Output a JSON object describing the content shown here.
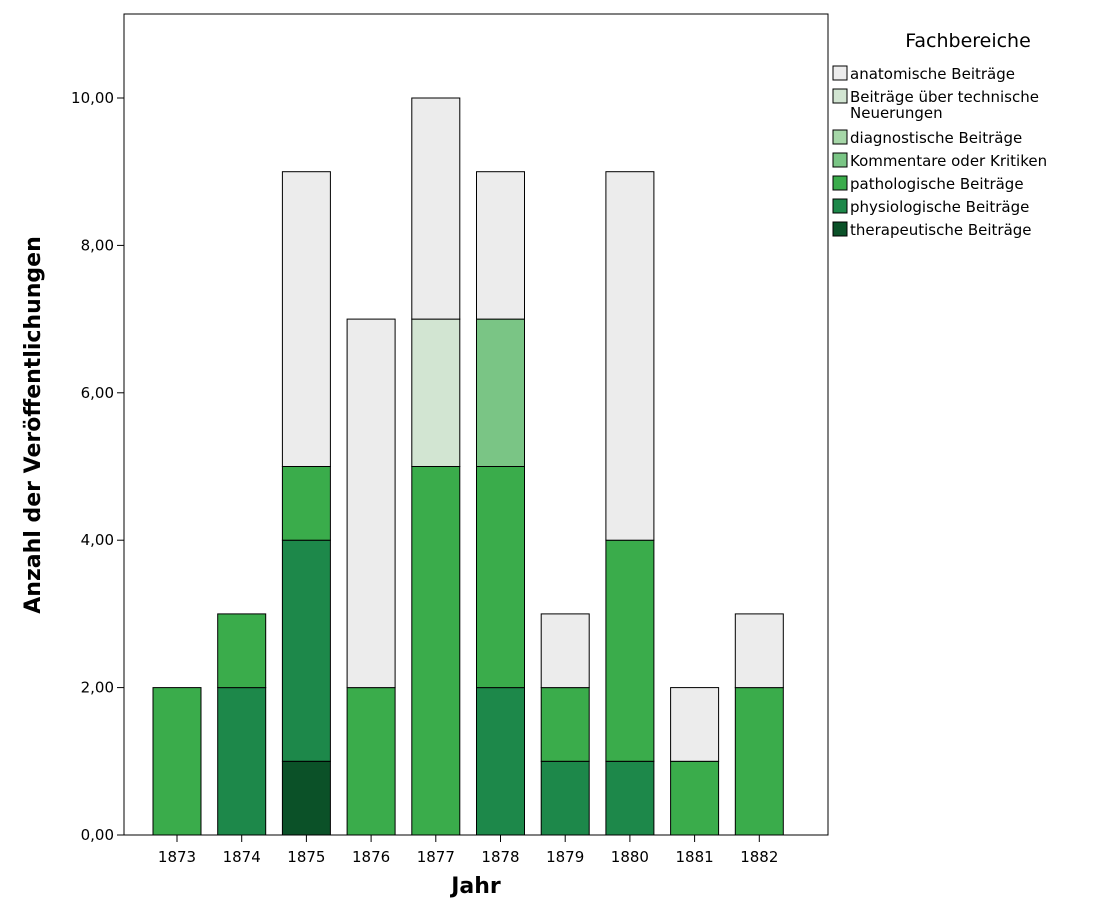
{
  "chart_data": {
    "type": "bar",
    "stacked": true,
    "categories": [
      "1873",
      "1874",
      "1875",
      "1876",
      "1877",
      "1878",
      "1879",
      "1880",
      "1881",
      "1882"
    ],
    "series": [
      {
        "name": "therapeutische Beiträge",
        "color": "#0b5128",
        "values": [
          0,
          0,
          1,
          0,
          0,
          0,
          0,
          0,
          0,
          0
        ]
      },
      {
        "name": "physiologische Beiträge",
        "color": "#1d884a",
        "values": [
          0,
          2,
          3,
          0,
          0,
          2,
          1,
          1,
          0,
          0
        ]
      },
      {
        "name": "pathologische Beiträge",
        "color": "#3aac4b",
        "values": [
          2,
          1,
          1,
          2,
          5,
          3,
          1,
          3,
          1,
          2
        ]
      },
      {
        "name": "Kommentare oder Kritiken",
        "color": "#7ac585",
        "values": [
          0,
          0,
          0,
          0,
          0,
          2,
          0,
          0,
          0,
          0
        ]
      },
      {
        "name": "diagnostische Beiträge",
        "color": "#a6d7a8",
        "values": [
          0,
          0,
          0,
          0,
          0,
          0,
          0,
          0,
          0,
          0
        ]
      },
      {
        "name": "Beiträge über technische Neuerungen",
        "color": "#d2e5d2",
        "values": [
          0,
          0,
          0,
          0,
          2,
          0,
          0,
          0,
          0,
          0
        ]
      },
      {
        "name": "anatomische Beiträge",
        "color": "#ececec",
        "values": [
          0,
          0,
          4,
          5,
          3,
          2,
          1,
          5,
          1,
          1
        ]
      }
    ],
    "xlabel": "Jahr",
    "ylabel": "Anzahl der Veröffentlichungen",
    "ylim": [
      0,
      11
    ],
    "yticks": [
      0,
      2,
      4,
      6,
      8,
      10
    ],
    "ytick_labels": [
      "0,00",
      "2,00",
      "4,00",
      "6,00",
      "8,00",
      "10,00"
    ],
    "legend": {
      "title": "Fachbereiche",
      "position": "right",
      "entries": [
        {
          "lines": [
            "anatomische Beiträge"
          ],
          "color": "#ececec"
        },
        {
          "lines": [
            "Beiträge über technische",
            "Neuerungen"
          ],
          "color": "#d2e5d2"
        },
        {
          "lines": [
            "diagnostische Beiträge"
          ],
          "color": "#a6d7a8"
        },
        {
          "lines": [
            "Kommentare oder Kritiken"
          ],
          "color": "#7ac585"
        },
        {
          "lines": [
            "pathologische Beiträge"
          ],
          "color": "#3aac4b"
        },
        {
          "lines": [
            "physiologische Beiträge"
          ],
          "color": "#1d884a"
        },
        {
          "lines": [
            "therapeutische Beiträge"
          ],
          "color": "#0b5128"
        }
      ]
    },
    "grid": false
  }
}
